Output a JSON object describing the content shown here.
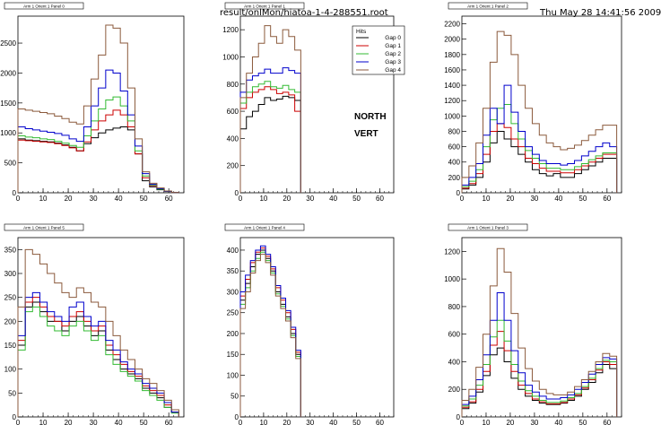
{
  "header": {
    "file_label": "result/onlMon/hiatoa-1-4-288551.root",
    "timestamp": "Thu May 28 14:41:56 2009"
  },
  "colors": {
    "Gap 0": "#000000",
    "Gap 1": "#cc0000",
    "Gap 2": "#33bb33",
    "Gap 3": "#0000cc",
    "Gap 4": "#8b5a3c"
  },
  "chart_data": [
    {
      "type": "line",
      "title": "Arm 1 Orient 1 Panel 0",
      "x_ticks": [
        0,
        10,
        20,
        30,
        40,
        50,
        60
      ],
      "y_ticks": [
        0,
        500,
        1000,
        1500,
        2000,
        2500
      ],
      "xlim": [
        0,
        66
      ],
      "ylim": [
        0,
        2950
      ],
      "series": [
        {
          "name": "Gap 0",
          "values": [
            900,
            880,
            870,
            860,
            850,
            830,
            800,
            760,
            700,
            820,
            920,
            1000,
            1050,
            1080,
            1100,
            1050,
            650,
            200,
            100,
            50,
            20,
            5
          ]
        },
        {
          "name": "Gap 1",
          "values": [
            880,
            870,
            860,
            850,
            840,
            820,
            790,
            750,
            700,
            850,
            1050,
            1200,
            1300,
            1380,
            1300,
            1100,
            650,
            250,
            120,
            60,
            25,
            5
          ]
        },
        {
          "name": "Gap 2",
          "values": [
            950,
            930,
            920,
            900,
            890,
            860,
            830,
            790,
            760,
            950,
            1200,
            1400,
            1550,
            1600,
            1450,
            1200,
            700,
            280,
            130,
            60,
            25,
            5
          ]
        },
        {
          "name": "Gap 3",
          "values": [
            1100,
            1070,
            1050,
            1030,
            1010,
            990,
            960,
            900,
            860,
            1100,
            1450,
            1750,
            2050,
            2000,
            1700,
            1300,
            780,
            320,
            140,
            70,
            25,
            5
          ]
        },
        {
          "name": "Gap 4",
          "values": [
            1400,
            1380,
            1360,
            1340,
            1320,
            1280,
            1240,
            1180,
            1150,
            1450,
            1900,
            2300,
            2800,
            2750,
            2500,
            1750,
            900,
            350,
            160,
            80,
            30,
            5
          ]
        }
      ]
    },
    {
      "type": "line",
      "title": "Arm 1 Orient 1 Panel 1",
      "x_ticks": [
        0,
        10,
        20,
        30,
        40,
        50,
        60
      ],
      "y_ticks": [
        0,
        200,
        400,
        600,
        800,
        1000,
        1200
      ],
      "xlim": [
        0,
        66
      ],
      "ylim": [
        0,
        1300
      ],
      "annotations": [
        "NORTH",
        "VERT"
      ],
      "legend": {
        "title": "Hits",
        "placement": "top-right"
      },
      "series": [
        {
          "name": "Gap 0",
          "values": [
            470,
            560,
            600,
            650,
            700,
            680,
            690,
            710,
            700,
            680
          ]
        },
        {
          "name": "Gap 1",
          "values": [
            620,
            700,
            740,
            760,
            780,
            760,
            730,
            740,
            720,
            600
          ]
        },
        {
          "name": "Gap 2",
          "values": [
            660,
            740,
            780,
            800,
            820,
            780,
            770,
            790,
            760,
            740
          ]
        },
        {
          "name": "Gap 3",
          "values": [
            740,
            830,
            860,
            880,
            910,
            880,
            880,
            920,
            900,
            880
          ]
        },
        {
          "name": "Gap 4",
          "values": [
            700,
            880,
            1000,
            1100,
            1230,
            1150,
            1100,
            1200,
            1150,
            1050
          ]
        }
      ]
    },
    {
      "type": "line",
      "title": "Arm 1 Orient 1 Panel 2",
      "x_ticks": [
        0,
        10,
        20,
        30,
        40,
        50,
        60
      ],
      "y_ticks": [
        0,
        200,
        400,
        600,
        800,
        1000,
        1200,
        1400,
        1600,
        1800,
        2000,
        2200
      ],
      "xlim": [
        0,
        66
      ],
      "ylim": [
        0,
        2300
      ],
      "series": [
        {
          "name": "Gap 0",
          "values": [
            50,
            100,
            200,
            400,
            650,
            800,
            700,
            600,
            500,
            400,
            300,
            250,
            220,
            250,
            200,
            200,
            250,
            300,
            350,
            400,
            450,
            450
          ]
        },
        {
          "name": "Gap 1",
          "values": [
            60,
            120,
            250,
            500,
            800,
            900,
            850,
            700,
            600,
            450,
            380,
            320,
            280,
            280,
            260,
            260,
            300,
            350,
            400,
            450,
            500,
            500
          ]
        },
        {
          "name": "Gap 2",
          "values": [
            80,
            150,
            300,
            600,
            950,
            1100,
            1150,
            900,
            700,
            550,
            450,
            380,
            320,
            320,
            300,
            300,
            340,
            380,
            430,
            480,
            520,
            520
          ]
        },
        {
          "name": "Gap 3",
          "values": [
            100,
            200,
            380,
            750,
            1100,
            900,
            1400,
            1050,
            800,
            600,
            500,
            420,
            380,
            380,
            360,
            380,
            420,
            480,
            540,
            600,
            650,
            600
          ]
        },
        {
          "name": "Gap 4",
          "values": [
            200,
            350,
            650,
            1100,
            1700,
            2100,
            2050,
            1800,
            1400,
            1100,
            900,
            750,
            650,
            600,
            560,
            580,
            620,
            680,
            750,
            820,
            880,
            880
          ]
        }
      ]
    },
    {
      "type": "line",
      "title": "Arm 1 Orient 1 Panel 5",
      "x_ticks": [
        0,
        10,
        20,
        30,
        40,
        50,
        60
      ],
      "y_ticks": [
        0,
        50,
        100,
        150,
        200,
        250,
        300,
        350
      ],
      "xlim": [
        0,
        66
      ],
      "ylim": [
        0,
        375
      ],
      "series": [
        {
          "name": "Gap 0",
          "values": [
            150,
            230,
            240,
            220,
            200,
            200,
            180,
            200,
            210,
            190,
            170,
            180,
            140,
            120,
            100,
            90,
            80,
            60,
            50,
            40,
            20,
            10
          ]
        },
        {
          "name": "Gap 1",
          "values": [
            160,
            240,
            250,
            230,
            210,
            200,
            190,
            210,
            220,
            200,
            180,
            190,
            150,
            130,
            110,
            95,
            85,
            65,
            55,
            45,
            25,
            10
          ]
        },
        {
          "name": "Gap 2",
          "values": [
            140,
            220,
            230,
            210,
            190,
            180,
            170,
            190,
            200,
            180,
            160,
            170,
            130,
            110,
            95,
            85,
            75,
            55,
            45,
            35,
            20,
            8
          ]
        },
        {
          "name": "Gap 3",
          "values": [
            170,
            250,
            260,
            240,
            220,
            210,
            200,
            230,
            240,
            210,
            190,
            200,
            160,
            140,
            115,
            100,
            90,
            70,
            60,
            50,
            30,
            10
          ]
        },
        {
          "name": "Gap 4",
          "values": [
            230,
            350,
            340,
            320,
            300,
            280,
            260,
            250,
            270,
            260,
            240,
            230,
            200,
            170,
            140,
            120,
            100,
            80,
            70,
            55,
            35,
            15
          ]
        }
      ]
    },
    {
      "type": "line",
      "title": "Arm 1 Orient 1 Panel 4",
      "x_ticks": [
        0,
        10,
        20,
        30,
        40,
        50,
        60
      ],
      "y_ticks": [
        0,
        50,
        100,
        150,
        200,
        250,
        300,
        350,
        400
      ],
      "xlim": [
        0,
        66
      ],
      "ylim": [
        0,
        430
      ],
      "series": [
        {
          "name": "Gap 0",
          "values": [
            280,
            320,
            360,
            390,
            400,
            380,
            350,
            300,
            270,
            240,
            200,
            150
          ]
        },
        {
          "name": "Gap 1",
          "values": [
            290,
            330,
            370,
            395,
            405,
            385,
            355,
            310,
            280,
            250,
            210,
            155
          ]
        },
        {
          "name": "Gap 2",
          "values": [
            270,
            310,
            350,
            380,
            395,
            375,
            345,
            295,
            265,
            235,
            195,
            145
          ]
        },
        {
          "name": "Gap 3",
          "values": [
            300,
            340,
            375,
            400,
            410,
            390,
            360,
            315,
            285,
            255,
            215,
            160
          ]
        },
        {
          "name": "Gap 4",
          "values": [
            260,
            300,
            345,
            375,
            390,
            370,
            340,
            290,
            260,
            230,
            190,
            140
          ]
        }
      ]
    },
    {
      "type": "line",
      "title": "Arm 1 Orient 1 Panel 3",
      "x_ticks": [
        0,
        10,
        20,
        30,
        40,
        50,
        60
      ],
      "y_ticks": [
        0,
        200,
        400,
        600,
        800,
        1000,
        1200
      ],
      "xlim": [
        0,
        66
      ],
      "ylim": [
        0,
        1300
      ],
      "series": [
        {
          "name": "Gap 0",
          "values": [
            60,
            100,
            180,
            300,
            450,
            500,
            400,
            280,
            200,
            150,
            120,
            100,
            90,
            90,
            100,
            120,
            150,
            200,
            250,
            320,
            380,
            350
          ]
        },
        {
          "name": "Gap 1",
          "values": [
            70,
            110,
            200,
            330,
            520,
            620,
            480,
            330,
            230,
            170,
            130,
            110,
            95,
            95,
            105,
            130,
            160,
            210,
            270,
            340,
            400,
            380
          ]
        },
        {
          "name": "Gap 2",
          "values": [
            80,
            130,
            230,
            380,
            580,
            700,
            550,
            380,
            260,
            190,
            150,
            120,
            105,
            105,
            115,
            140,
            170,
            220,
            280,
            350,
            410,
            400
          ]
        },
        {
          "name": "Gap 3",
          "values": [
            90,
            150,
            270,
            450,
            700,
            900,
            700,
            480,
            320,
            230,
            180,
            150,
            130,
            130,
            140,
            160,
            200,
            250,
            310,
            380,
            430,
            420
          ]
        },
        {
          "name": "Gap 4",
          "values": [
            120,
            200,
            360,
            600,
            950,
            1220,
            1050,
            750,
            500,
            350,
            260,
            200,
            170,
            160,
            160,
            180,
            220,
            270,
            330,
            400,
            460,
            440
          ]
        }
      ]
    }
  ]
}
